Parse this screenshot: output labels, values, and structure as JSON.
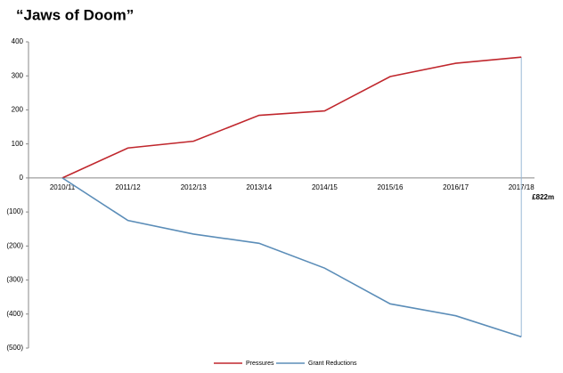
{
  "chart_data": {
    "type": "line",
    "title": "“Jaws of Doom”",
    "categories": [
      "2010/11",
      "2011/12",
      "2012/13",
      "2013/14",
      "2014/15",
      "2015/16",
      "2016/17",
      "2017/18"
    ],
    "series": [
      {
        "name": "Pressures",
        "color": "#c0272d",
        "values": [
          0,
          88,
          108,
          184,
          197,
          298,
          337,
          355
        ]
      },
      {
        "name": "Grant Reductions",
        "color": "#5b8db8",
        "values": [
          0,
          -125,
          -165,
          -192,
          -265,
          -370,
          -405,
          -467
        ]
      }
    ],
    "ylim": [
      -500,
      400
    ],
    "yticks": [
      400,
      300,
      200,
      100,
      0,
      {
        "value": -100,
        "label": "(100)"
      },
      {
        "value": -200,
        "label": "(200)"
      },
      {
        "value": -300,
        "label": "(300)"
      },
      {
        "value": -400,
        "label": "(400)"
      },
      {
        "value": -500,
        "label": "(500)"
      }
    ],
    "annotation": "£822m",
    "legend": "bottom"
  }
}
